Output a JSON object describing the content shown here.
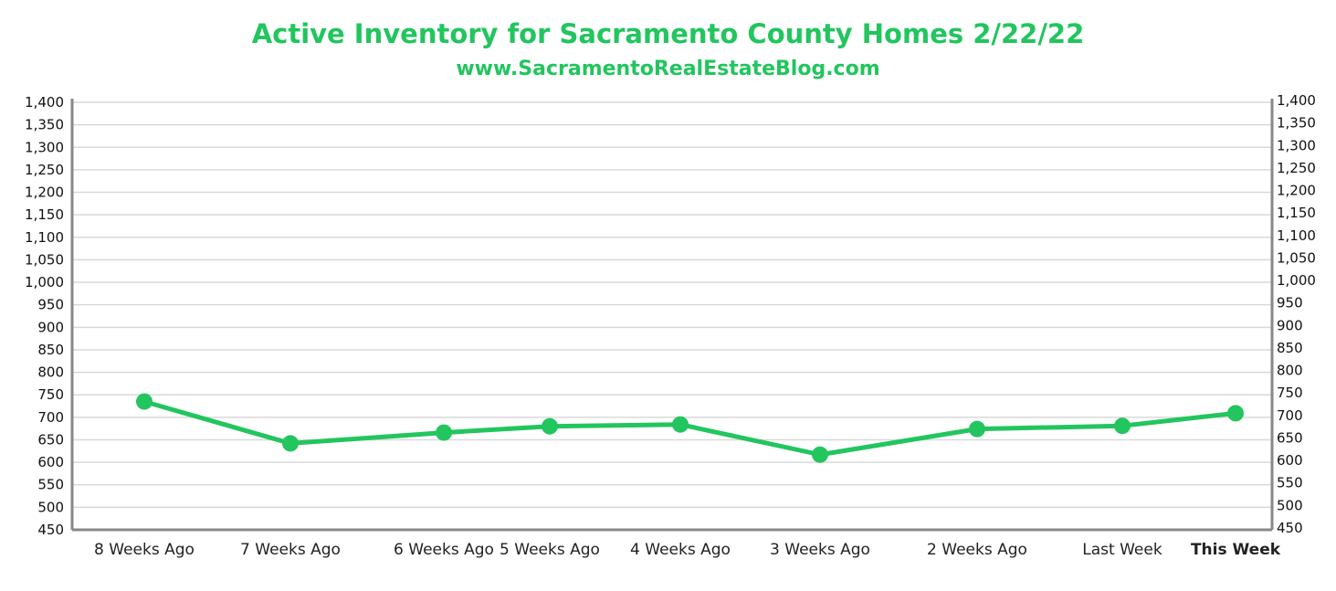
{
  "chart_data": {
    "type": "line",
    "title": "Active Inventory for Sacramento County Homes 2/22/22",
    "subtitle": "www.SacramentoRealEstateBlog.com",
    "categories": [
      "8 Weeks Ago",
      "7 Weeks Ago",
      "6 Weeks Ago",
      "5 Weeks Ago",
      "4 Weeks Ago",
      "3 Weeks Ago",
      "2 Weeks Ago",
      "Last Week",
      "This Week"
    ],
    "highlight_category": "This Week",
    "series": [
      {
        "name": "Active Inventory",
        "values": [
          735,
          642,
          666,
          680,
          684,
          617,
          674,
          681,
          709
        ]
      }
    ],
    "yticks": [
      450,
      500,
      550,
      600,
      650,
      700,
      750,
      800,
      850,
      900,
      950,
      1000,
      1050,
      1100,
      1150,
      1200,
      1250,
      1300,
      1350,
      1400
    ],
    "ytick_labels": [
      "450",
      "500",
      "550",
      "600",
      "650",
      "700",
      "750",
      "800",
      "850",
      "900",
      "950",
      "1,000",
      "1,050",
      "1,100",
      "1,150",
      "1,200",
      "1,250",
      "1,300",
      "1,350",
      "1,400"
    ],
    "ylim": [
      450,
      1400
    ],
    "xlabel": "",
    "ylabel": "",
    "grid": true,
    "dual_y_axis": true,
    "colors": {
      "line": "#22c55e",
      "text_accent": "#22c55e",
      "axis": "#888888",
      "grid": "#d9d9d9"
    }
  }
}
